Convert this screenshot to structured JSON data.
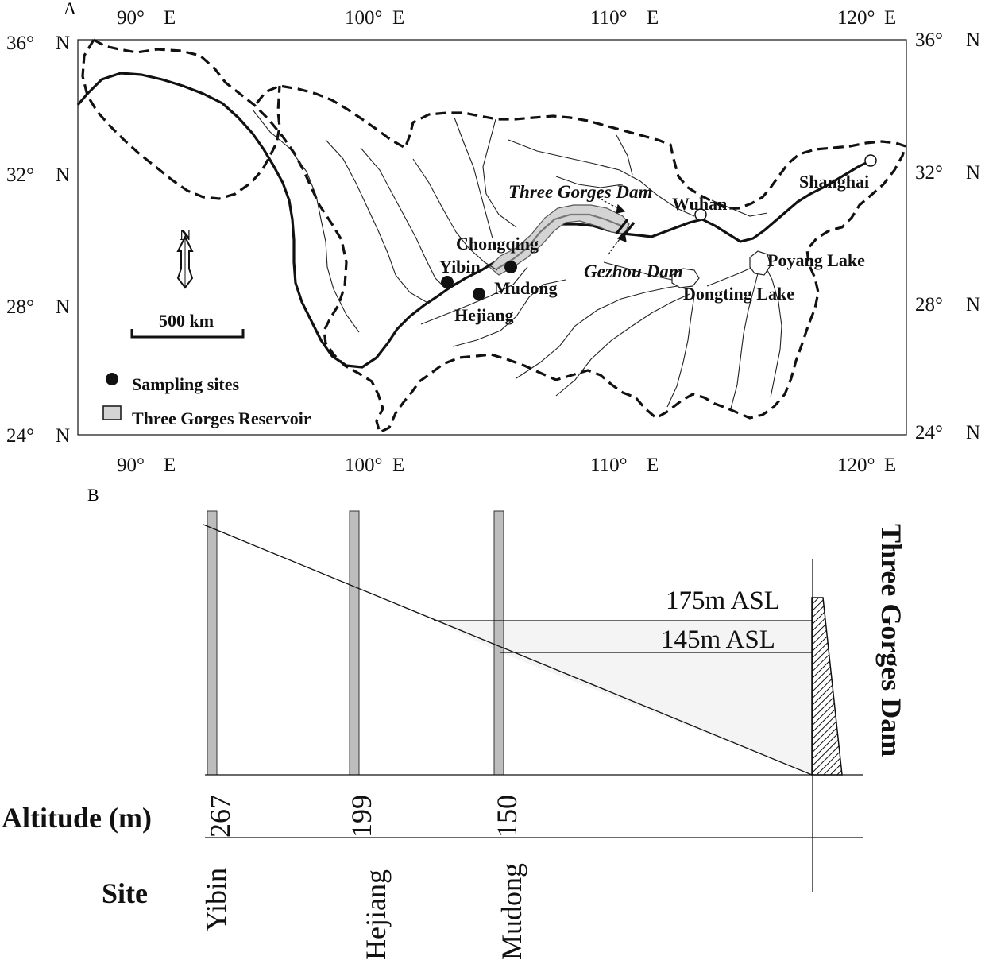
{
  "panel_a": {
    "label": "A",
    "top_longitudes": [
      {
        "deg": "90°",
        "dir": "E"
      },
      {
        "deg": "100°",
        "dir": "E"
      },
      {
        "deg": "110°",
        "dir": "E"
      },
      {
        "deg": "120°",
        "dir": "E"
      }
    ],
    "bottom_longitudes": [
      {
        "deg": "90°",
        "dir": "E"
      },
      {
        "deg": "100°",
        "dir": "E"
      },
      {
        "deg": "110°",
        "dir": "E"
      },
      {
        "deg": "120°",
        "dir": "E"
      }
    ],
    "left_latitudes": [
      {
        "deg": "36°",
        "dir": "N"
      },
      {
        "deg": "32°",
        "dir": "N"
      },
      {
        "deg": "28°",
        "dir": "N"
      },
      {
        "deg": "24°",
        "dir": "N"
      }
    ],
    "right_latitudes": [
      {
        "deg": "36°",
        "dir": "N"
      },
      {
        "deg": "32°",
        "dir": "N"
      },
      {
        "deg": "28°",
        "dir": "N"
      },
      {
        "deg": "24°",
        "dir": "N"
      }
    ],
    "north_label": "N",
    "scale_label": "500 km",
    "places": {
      "three_gorges_dam": "Three Gorges Dam",
      "wuhan": "Wuhan",
      "shanghai": "Shanghai",
      "chongqing": "Chongqing",
      "yibin": "Yibin",
      "mudong": "Mudong",
      "hejiang": "Hejiang",
      "gezhou_dam": "Gezhou Dam",
      "poyang_lake": "Poyang Lake",
      "dongting_lake": "Dongting Lake"
    },
    "legend": {
      "sampling_sites": "Sampling sites",
      "reservoir": "Three Gorges Reservoir"
    }
  },
  "panel_b": {
    "label": "B",
    "dam_title": "Three Gorges Dam",
    "level_high": "175m ASL",
    "level_low": "145m ASL",
    "altitude_label": "Altitude (m)",
    "site_label": "Site",
    "sites": [
      {
        "name": "Yibin",
        "altitude": "267"
      },
      {
        "name": "Hejiang",
        "altitude": "199"
      },
      {
        "name": "Mudong",
        "altitude": "150"
      }
    ]
  },
  "colors": {
    "line": "#111111",
    "reservoir_fill": "#d4d4d4",
    "water_fill": "#f4f4f4",
    "post_fill": "#bdbdbd"
  }
}
